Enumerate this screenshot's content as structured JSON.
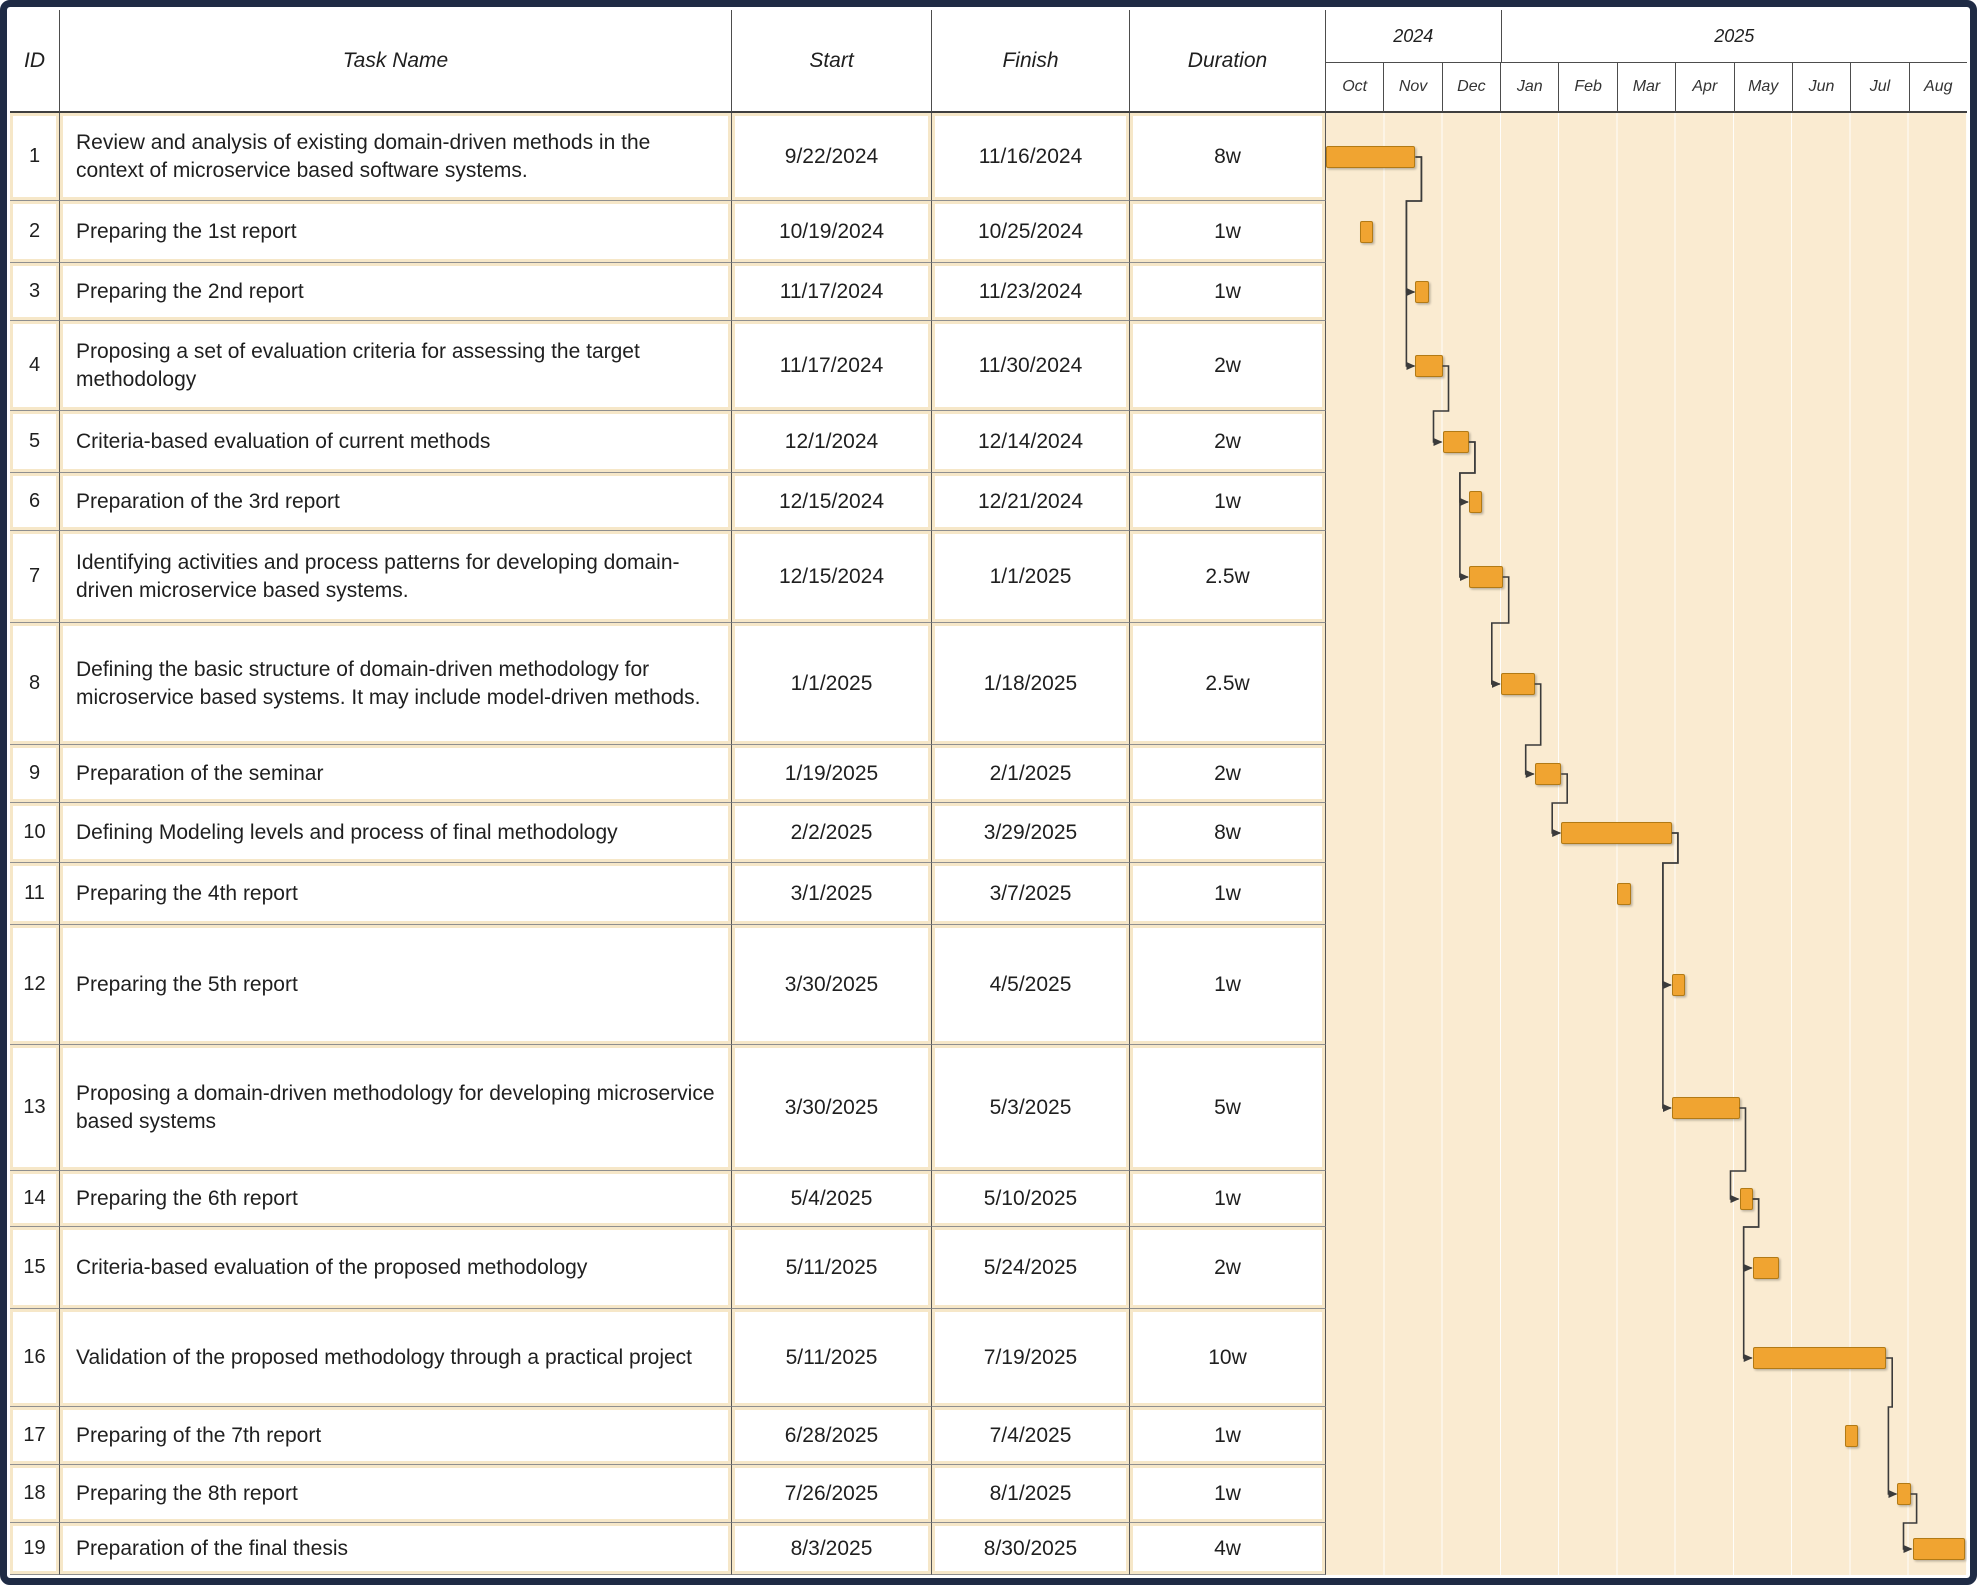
{
  "chart_data": {
    "type": "gantt",
    "columns": {
      "id": "ID",
      "task": "Task Name",
      "start": "Start",
      "finish": "Finish",
      "duration": "Duration"
    },
    "timeline": {
      "years": [
        {
          "label": "2024",
          "span": 3
        },
        {
          "label": "2025",
          "span": 8
        }
      ],
      "months": [
        "Oct",
        "Nov",
        "Dec",
        "Jan",
        "Feb",
        "Mar",
        "Apr",
        "May",
        "Jun",
        "Jul",
        "Aug"
      ]
    },
    "tasks": [
      {
        "id": 1,
        "name": "Review and analysis of existing domain-driven methods in the context of microservice based software systems.",
        "start": "9/22/2024",
        "finish": "11/16/2024",
        "duration": "8w"
      },
      {
        "id": 2,
        "name": "Preparing the 1st report",
        "start": "10/19/2024",
        "finish": "10/25/2024",
        "duration": "1w"
      },
      {
        "id": 3,
        "name": "Preparing the 2nd report",
        "start": "11/17/2024",
        "finish": "11/23/2024",
        "duration": "1w"
      },
      {
        "id": 4,
        "name": "Proposing a set of evaluation criteria for assessing the target methodology",
        "start": "11/17/2024",
        "finish": "11/30/2024",
        "duration": "2w"
      },
      {
        "id": 5,
        "name": "Criteria-based evaluation of current methods",
        "start": "12/1/2024",
        "finish": "12/14/2024",
        "duration": "2w"
      },
      {
        "id": 6,
        "name": "Preparation of the 3rd report",
        "start": "12/15/2024",
        "finish": "12/21/2024",
        "duration": "1w"
      },
      {
        "id": 7,
        "name": "Identifying activities and process patterns for developing domain-driven microservice based systems.",
        "start": "12/15/2024",
        "finish": "1/1/2025",
        "duration": "2.5w"
      },
      {
        "id": 8,
        "name": "Defining the basic structure of domain-driven methodology for microservice based systems. It may include model-driven methods.",
        "start": "1/1/2025",
        "finish": "1/18/2025",
        "duration": "2.5w"
      },
      {
        "id": 9,
        "name": "Preparation of the seminar",
        "start": "1/19/2025",
        "finish": "2/1/2025",
        "duration": "2w"
      },
      {
        "id": 10,
        "name": "Defining Modeling levels and process of final methodology",
        "start": "2/2/2025",
        "finish": "3/29/2025",
        "duration": "8w"
      },
      {
        "id": 11,
        "name": "Preparing the 4th report",
        "start": "3/1/2025",
        "finish": "3/7/2025",
        "duration": "1w"
      },
      {
        "id": 12,
        "name": "Preparing the 5th report",
        "start": "3/30/2025",
        "finish": "4/5/2025",
        "duration": "1w"
      },
      {
        "id": 13,
        "name": "Proposing a domain-driven methodology for developing microservice based systems",
        "start": "3/30/2025",
        "finish": "5/3/2025",
        "duration": "5w"
      },
      {
        "id": 14,
        "name": "Preparing the 6th report",
        "start": "5/4/2025",
        "finish": "5/10/2025",
        "duration": "1w"
      },
      {
        "id": 15,
        "name": "Criteria-based evaluation of the proposed methodology",
        "start": "5/11/2025",
        "finish": "5/24/2025",
        "duration": "2w"
      },
      {
        "id": 16,
        "name": "Validation of the proposed methodology through a practical project",
        "start": "5/11/2025",
        "finish": "7/19/2025",
        "duration": "10w"
      },
      {
        "id": 17,
        "name": "Preparing of the 7th report",
        "start": "6/28/2025",
        "finish": "7/4/2025",
        "duration": "1w"
      },
      {
        "id": 18,
        "name": "Preparing the 8th report",
        "start": "7/26/2025",
        "finish": "8/1/2025",
        "duration": "1w"
      },
      {
        "id": 19,
        "name": "Preparation of the final thesis",
        "start": "8/3/2025",
        "finish": "8/30/2025",
        "duration": "4w"
      }
    ],
    "dependencies": [
      [
        1,
        3
      ],
      [
        1,
        4
      ],
      [
        4,
        5
      ],
      [
        5,
        6
      ],
      [
        5,
        7
      ],
      [
        7,
        8
      ],
      [
        8,
        9
      ],
      [
        9,
        10
      ],
      [
        10,
        12
      ],
      [
        10,
        13
      ],
      [
        13,
        14
      ],
      [
        14,
        15
      ],
      [
        14,
        16
      ],
      [
        16,
        18
      ],
      [
        18,
        19
      ]
    ]
  },
  "colors": {
    "bar": "#F0A431",
    "bar_border": "#B27A15",
    "chart_background": "#FAEBD1",
    "cell_outline": "#F6E7C8",
    "frame_border": "#1F2B45",
    "connector": "#3B3B3B"
  }
}
